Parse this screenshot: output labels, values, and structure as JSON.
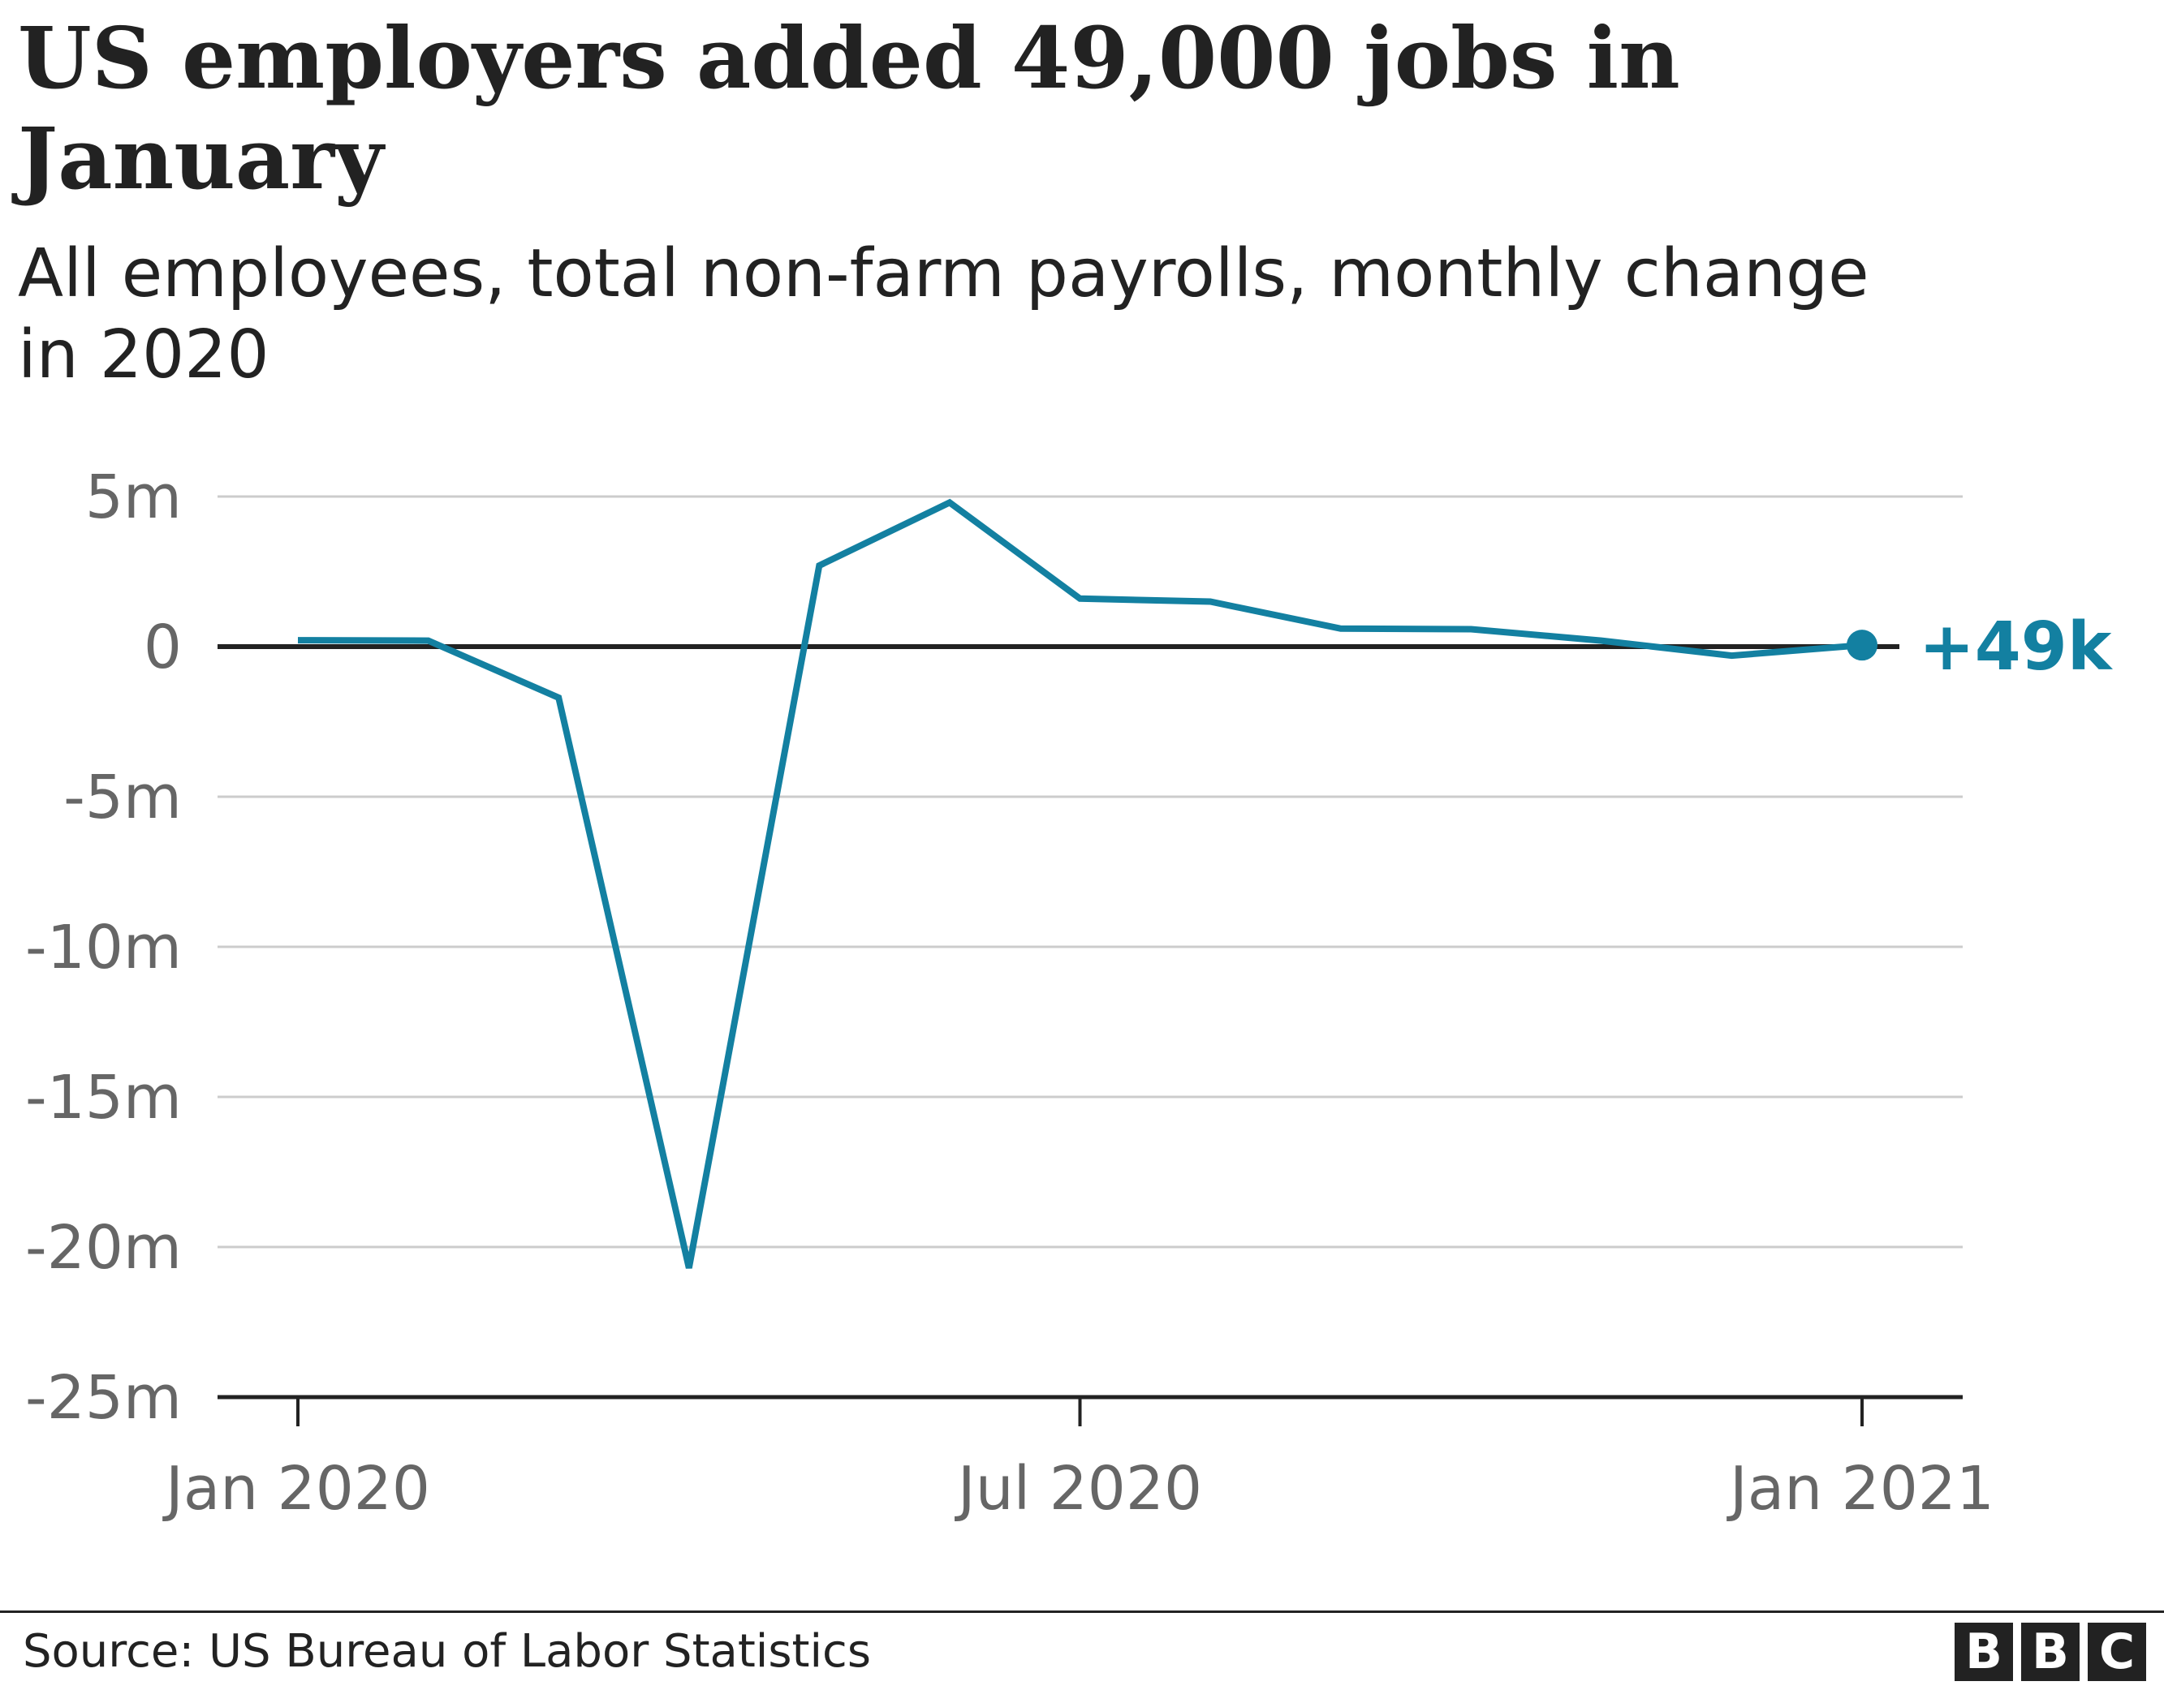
{
  "header": {
    "title": "US employers added 49,000 jobs in January",
    "subtitle": "All employees, total non-farm payrolls, monthly change in 2020"
  },
  "footer": {
    "source": "Source: US Bureau of Labor Statistics",
    "logo_letters": [
      "B",
      "B",
      "C"
    ]
  },
  "colors": {
    "line": "#1380A1",
    "grid": "#cccccc",
    "zero_line": "#222222",
    "axis_text": "#666666"
  },
  "chart_data": {
    "type": "line",
    "x": [
      "2020-01",
      "2020-02",
      "2020-03",
      "2020-04",
      "2020-05",
      "2020-06",
      "2020-07",
      "2020-08",
      "2020-09",
      "2020-10",
      "2020-11",
      "2020-12",
      "2021-01"
    ],
    "series": [
      {
        "values": [
          0.214,
          0.2,
          -1.7,
          -20.7,
          2.7,
          4.8,
          1.6,
          1.5,
          0.6,
          0.58,
          0.2,
          -0.3,
          0.049
        ]
      }
    ],
    "x_ticks": [
      {
        "x": "2020-01",
        "label": "Jan 2020"
      },
      {
        "x": "2020-07",
        "label": "Jul 2020"
      },
      {
        "x": "2021-01",
        "label": "Jan 2021"
      }
    ],
    "y_ticks": [
      {
        "value": 5,
        "label": "5m"
      },
      {
        "value": 0,
        "label": "0"
      },
      {
        "value": -5,
        "label": "-5m"
      },
      {
        "value": -10,
        "label": "-10m"
      },
      {
        "value": -15,
        "label": "-15m"
      },
      {
        "value": -20,
        "label": "-20m"
      },
      {
        "value": -25,
        "label": "-25m"
      }
    ],
    "ylim": [
      -25,
      5
    ],
    "grid": true,
    "annotation": {
      "x": "2021-01",
      "text": "+49k"
    }
  }
}
